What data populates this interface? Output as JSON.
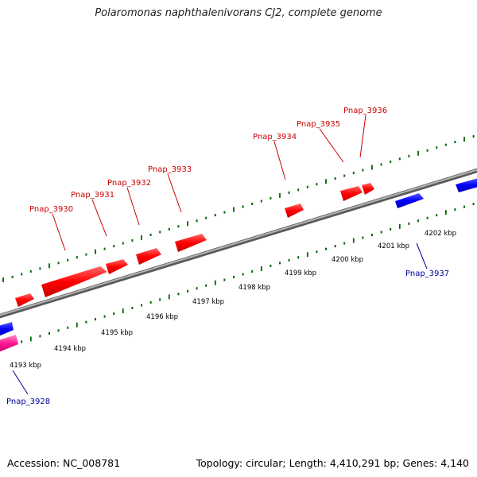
{
  "title": "Polaromonas naphthalenivorans CJ2, complete genome",
  "footer": {
    "accession": "Accession: NC_008781",
    "stats": "Topology: circular; Length: 4,410,291 bp; Genes: 4,140"
  },
  "colors": {
    "forward_gene": "#ff0000",
    "reverse_gene": "#0000ff",
    "rna_gene": "#ff1493",
    "forward_label": "#cc0000",
    "reverse_label": "#000099",
    "backbone": "#808080",
    "tick": "#006400"
  },
  "kbp_labels": [
    "4193 kbp",
    "4194 kbp",
    "4195 kbp",
    "4196 kbp",
    "4197 kbp",
    "4198 kbp",
    "4199 kbp",
    "4200 kbp",
    "4201 kbp",
    "4202 kbp"
  ],
  "genes_forward": [
    {
      "label": "Pnap_3930"
    },
    {
      "label": "Pnap_3931"
    },
    {
      "label": "Pnap_3932"
    },
    {
      "label": "Pnap_3933"
    },
    {
      "label": "Pnap_3934"
    },
    {
      "label": "Pnap_3935"
    },
    {
      "label": "Pnap_3936"
    }
  ],
  "genes_reverse": [
    {
      "label": "Pnap_3928"
    },
    {
      "label": "Pnap_3937"
    }
  ]
}
